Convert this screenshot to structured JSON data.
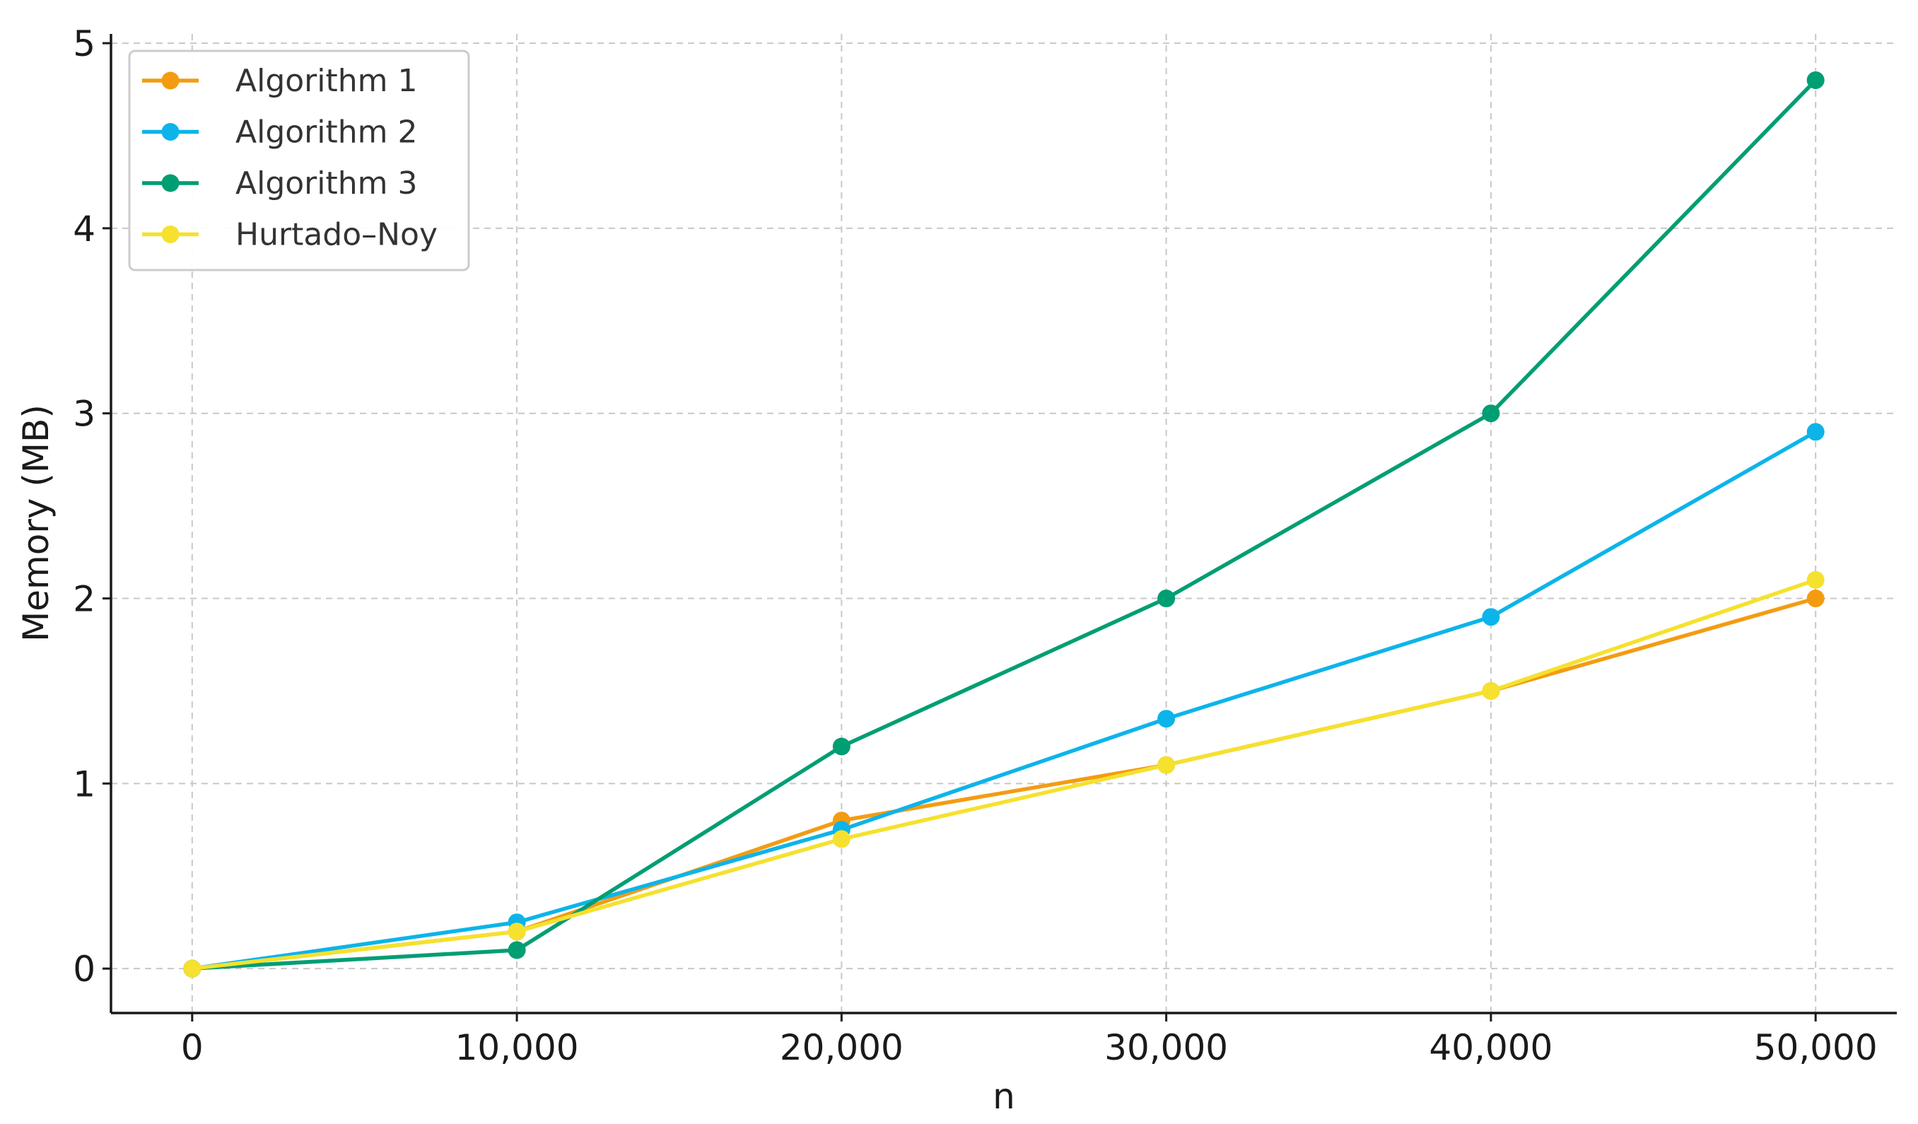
{
  "chart_data": {
    "type": "line",
    "title": "",
    "xlabel": "n",
    "ylabel": "Memory (MB)",
    "x": [
      0,
      10000,
      20000,
      30000,
      40000,
      50000
    ],
    "xticks": [
      0,
      10000,
      20000,
      30000,
      40000,
      50000
    ],
    "xtick_labels": [
      "0",
      "10,000",
      "20,000",
      "30,000",
      "40,000",
      "50,000"
    ],
    "yticks": [
      0,
      1,
      2,
      3,
      4,
      5
    ],
    "ytick_labels": [
      "0",
      "1",
      "2",
      "3",
      "4",
      "5"
    ],
    "xlim": [
      -2500,
      52500
    ],
    "ylim": [
      -0.24,
      5.05
    ],
    "grid": true,
    "legend_position": "top-left",
    "series": [
      {
        "name": "Algorithm 1",
        "color": "#F39C12",
        "values": [
          0,
          0.2,
          0.8,
          1.1,
          1.5,
          2.0
        ]
      },
      {
        "name": "Algorithm 2",
        "color": "#0DB4E9",
        "values": [
          0,
          0.25,
          0.75,
          1.35,
          1.9,
          2.9
        ]
      },
      {
        "name": "Algorithm 3",
        "color": "#009E73",
        "values": [
          0,
          0.1,
          1.2,
          2.0,
          3.0,
          4.8
        ]
      },
      {
        "name": "Hurtado–Noy",
        "color": "#F5E12E",
        "values": [
          0,
          0.2,
          0.7,
          1.1,
          1.5,
          2.1
        ]
      }
    ]
  }
}
